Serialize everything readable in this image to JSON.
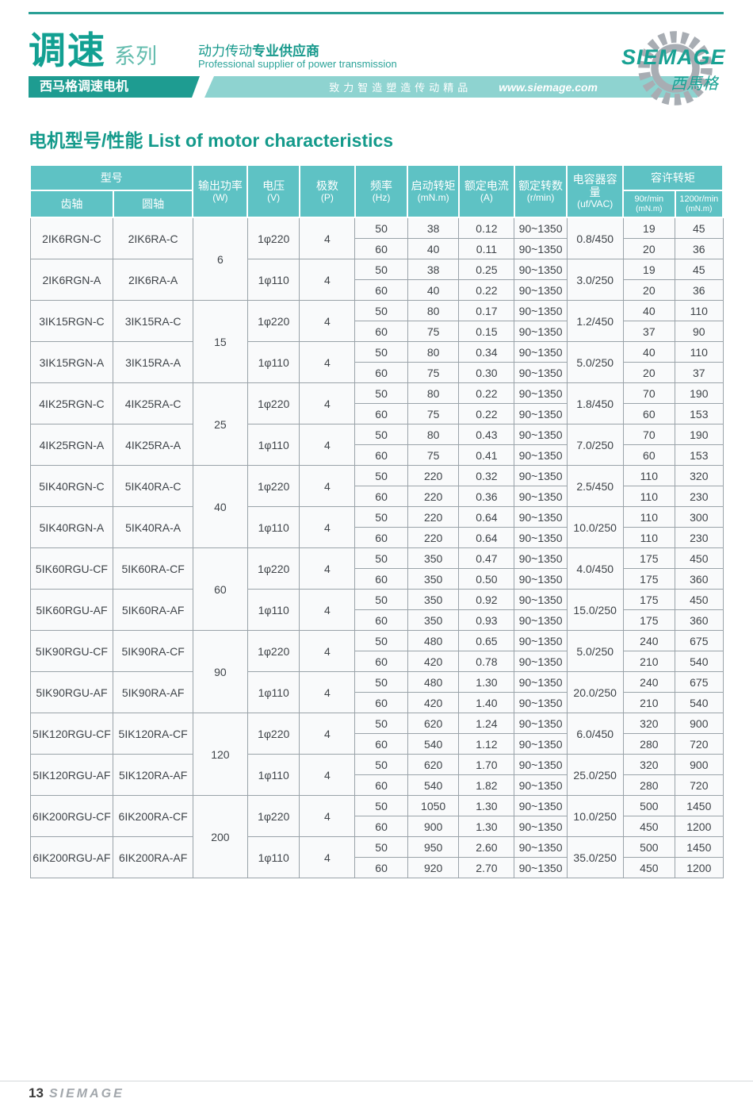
{
  "header": {
    "series_title": "调速",
    "series_suffix": "系列",
    "subtitle_bar": "西马格调速电机",
    "slogan_cn": "动力传动",
    "slogan_cn_bold": "专业供应商",
    "slogan_en": "Professional supplier of power transmission",
    "band_slogan": "致力智造塑造传动精品",
    "website": "www.siemage.com",
    "logo_text": "SIEMAGE",
    "logo_text_cn": "西馬格"
  },
  "title": "电机型号/性能 List of motor characteristics",
  "colors": {
    "accent_teal": "#1e9c91",
    "table_header_fill": "#5ec2c4",
    "light_band_fill": "#8ed3d0",
    "logo_gray": "#a8adb3"
  },
  "table": {
    "header": {
      "model": "型号",
      "gear_shaft": "齿轴",
      "round_shaft": "圆轴",
      "output_power": "输出功率",
      "output_power_unit": "(W)",
      "voltage": "电压",
      "voltage_unit": "(V)",
      "poles": "极数",
      "poles_unit": "(P)",
      "frequency": "频率",
      "frequency_unit": "(Hz)",
      "starting_torque": "启动转矩",
      "starting_torque_unit": "(mN.m)",
      "rated_current": "额定电流",
      "rated_current_unit": "(A)",
      "rated_speed": "额定转数",
      "rated_speed_unit": "(r/min)",
      "capacitor": "电容器容量",
      "capacitor_unit": "(uf/VAC)",
      "allowable_torque": "容许转矩",
      "t90": "90r/min",
      "t90_unit": "(mN.m)",
      "t1200": "1200r/min",
      "t1200_unit": "(mN.m)"
    },
    "groups": [
      {
        "power": "6",
        "variants": [
          {
            "gear": "2IK6RGN-C",
            "round": "2IK6RA-C",
            "voltage": "1φ220",
            "poles": "4",
            "capacitor": "0.8/450",
            "rows": [
              {
                "hz": "50",
                "start": "38",
                "current": "0.12",
                "speed": "90~1350",
                "t90": "19",
                "t1200": "45"
              },
              {
                "hz": "60",
                "start": "40",
                "current": "0.11",
                "speed": "90~1350",
                "t90": "20",
                "t1200": "36"
              }
            ]
          },
          {
            "gear": "2IK6RGN-A",
            "round": "2IK6RA-A",
            "voltage": "1φ110",
            "poles": "4",
            "capacitor": "3.0/250",
            "rows": [
              {
                "hz": "50",
                "start": "38",
                "current": "0.25",
                "speed": "90~1350",
                "t90": "19",
                "t1200": "45"
              },
              {
                "hz": "60",
                "start": "40",
                "current": "0.22",
                "speed": "90~1350",
                "t90": "20",
                "t1200": "36"
              }
            ]
          }
        ]
      },
      {
        "power": "15",
        "variants": [
          {
            "gear": "3IK15RGN-C",
            "round": "3IK15RA-C",
            "voltage": "1φ220",
            "poles": "4",
            "capacitor": "1.2/450",
            "rows": [
              {
                "hz": "50",
                "start": "80",
                "current": "0.17",
                "speed": "90~1350",
                "t90": "40",
                "t1200": "110"
              },
              {
                "hz": "60",
                "start": "75",
                "current": "0.15",
                "speed": "90~1350",
                "t90": "37",
                "t1200": "90"
              }
            ]
          },
          {
            "gear": "3IK15RGN-A",
            "round": "3IK15RA-A",
            "voltage": "1φ110",
            "poles": "4",
            "capacitor": "5.0/250",
            "rows": [
              {
                "hz": "50",
                "start": "80",
                "current": "0.34",
                "speed": "90~1350",
                "t90": "40",
                "t1200": "110"
              },
              {
                "hz": "60",
                "start": "75",
                "current": "0.30",
                "speed": "90~1350",
                "t90": "20",
                "t1200": "37"
              }
            ]
          }
        ]
      },
      {
        "power": "25",
        "variants": [
          {
            "gear": "4IK25RGN-C",
            "round": "4IK25RA-C",
            "voltage": "1φ220",
            "poles": "4",
            "capacitor": "1.8/450",
            "rows": [
              {
                "hz": "50",
                "start": "80",
                "current": "0.22",
                "speed": "90~1350",
                "t90": "70",
                "t1200": "190"
              },
              {
                "hz": "60",
                "start": "75",
                "current": "0.22",
                "speed": "90~1350",
                "t90": "60",
                "t1200": "153"
              }
            ]
          },
          {
            "gear": "4IK25RGN-A",
            "round": "4IK25RA-A",
            "voltage": "1φ110",
            "poles": "4",
            "capacitor": "7.0/250",
            "rows": [
              {
                "hz": "50",
                "start": "80",
                "current": "0.43",
                "speed": "90~1350",
                "t90": "70",
                "t1200": "190"
              },
              {
                "hz": "60",
                "start": "75",
                "current": "0.41",
                "speed": "90~1350",
                "t90": "60",
                "t1200": "153"
              }
            ]
          }
        ]
      },
      {
        "power": "40",
        "variants": [
          {
            "gear": "5IK40RGN-C",
            "round": "5IK40RA-C",
            "voltage": "1φ220",
            "poles": "4",
            "capacitor": "2.5/450",
            "rows": [
              {
                "hz": "50",
                "start": "220",
                "current": "0.32",
                "speed": "90~1350",
                "t90": "110",
                "t1200": "320"
              },
              {
                "hz": "60",
                "start": "220",
                "current": "0.36",
                "speed": "90~1350",
                "t90": "110",
                "t1200": "230"
              }
            ]
          },
          {
            "gear": "5IK40RGN-A",
            "round": "5IK40RA-A",
            "voltage": "1φ110",
            "poles": "4",
            "capacitor": "10.0/250",
            "rows": [
              {
                "hz": "50",
                "start": "220",
                "current": "0.64",
                "speed": "90~1350",
                "t90": "110",
                "t1200": "300"
              },
              {
                "hz": "60",
                "start": "220",
                "current": "0.64",
                "speed": "90~1350",
                "t90": "110",
                "t1200": "230"
              }
            ]
          }
        ]
      },
      {
        "power": "60",
        "variants": [
          {
            "gear": "5IK60RGU-CF",
            "round": "5IK60RA-CF",
            "voltage": "1φ220",
            "poles": "4",
            "capacitor": "4.0/450",
            "rows": [
              {
                "hz": "50",
                "start": "350",
                "current": "0.47",
                "speed": "90~1350",
                "t90": "175",
                "t1200": "450"
              },
              {
                "hz": "60",
                "start": "350",
                "current": "0.50",
                "speed": "90~1350",
                "t90": "175",
                "t1200": "360"
              }
            ]
          },
          {
            "gear": "5IK60RGU-AF",
            "round": "5IK60RA-AF",
            "voltage": "1φ110",
            "poles": "4",
            "capacitor": "15.0/250",
            "rows": [
              {
                "hz": "50",
                "start": "350",
                "current": "0.92",
                "speed": "90~1350",
                "t90": "175",
                "t1200": "450"
              },
              {
                "hz": "60",
                "start": "350",
                "current": "0.93",
                "speed": "90~1350",
                "t90": "175",
                "t1200": "360"
              }
            ]
          }
        ]
      },
      {
        "power": "90",
        "variants": [
          {
            "gear": "5IK90RGU-CF",
            "round": "5IK90RA-CF",
            "voltage": "1φ220",
            "poles": "4",
            "capacitor": "5.0/250",
            "rows": [
              {
                "hz": "50",
                "start": "480",
                "current": "0.65",
                "speed": "90~1350",
                "t90": "240",
                "t1200": "675"
              },
              {
                "hz": "60",
                "start": "420",
                "current": "0.78",
                "speed": "90~1350",
                "t90": "210",
                "t1200": "540"
              }
            ]
          },
          {
            "gear": "5IK90RGU-AF",
            "round": "5IK90RA-AF",
            "voltage": "1φ110",
            "poles": "4",
            "capacitor": "20.0/250",
            "rows": [
              {
                "hz": "50",
                "start": "480",
                "current": "1.30",
                "speed": "90~1350",
                "t90": "240",
                "t1200": "675"
              },
              {
                "hz": "60",
                "start": "420",
                "current": "1.40",
                "speed": "90~1350",
                "t90": "210",
                "t1200": "540"
              }
            ]
          }
        ]
      },
      {
        "power": "120",
        "variants": [
          {
            "gear": "5IK120RGU-CF",
            "round": "5IK120RA-CF",
            "voltage": "1φ220",
            "poles": "4",
            "capacitor": "6.0/450",
            "rows": [
              {
                "hz": "50",
                "start": "620",
                "current": "1.24",
                "speed": "90~1350",
                "t90": "320",
                "t1200": "900"
              },
              {
                "hz": "60",
                "start": "540",
                "current": "1.12",
                "speed": "90~1350",
                "t90": "280",
                "t1200": "720"
              }
            ]
          },
          {
            "gear": "5IK120RGU-AF",
            "round": "5IK120RA-AF",
            "voltage": "1φ110",
            "poles": "4",
            "capacitor": "25.0/250",
            "rows": [
              {
                "hz": "50",
                "start": "620",
                "current": "1.70",
                "speed": "90~1350",
                "t90": "320",
                "t1200": "900"
              },
              {
                "hz": "60",
                "start": "540",
                "current": "1.82",
                "speed": "90~1350",
                "t90": "280",
                "t1200": "720"
              }
            ]
          }
        ]
      },
      {
        "power": "200",
        "variants": [
          {
            "gear": "6IK200RGU-CF",
            "round": "6IK200RA-CF",
            "voltage": "1φ220",
            "poles": "4",
            "capacitor": "10.0/250",
            "rows": [
              {
                "hz": "50",
                "start": "1050",
                "current": "1.30",
                "speed": "90~1350",
                "t90": "500",
                "t1200": "1450"
              },
              {
                "hz": "60",
                "start": "900",
                "current": "1.30",
                "speed": "90~1350",
                "t90": "450",
                "t1200": "1200"
              }
            ]
          },
          {
            "gear": "6IK200RGU-AF",
            "round": "6IK200RA-AF",
            "voltage": "1φ110",
            "poles": "4",
            "capacitor": "35.0/250",
            "rows": [
              {
                "hz": "50",
                "start": "950",
                "current": "2.60",
                "speed": "90~1350",
                "t90": "500",
                "t1200": "1450"
              },
              {
                "hz": "60",
                "start": "920",
                "current": "2.70",
                "speed": "90~1350",
                "t90": "450",
                "t1200": "1200"
              }
            ]
          }
        ]
      }
    ]
  },
  "footer": {
    "page_number": "13",
    "brand_wordmark": "SIEMAGE"
  }
}
